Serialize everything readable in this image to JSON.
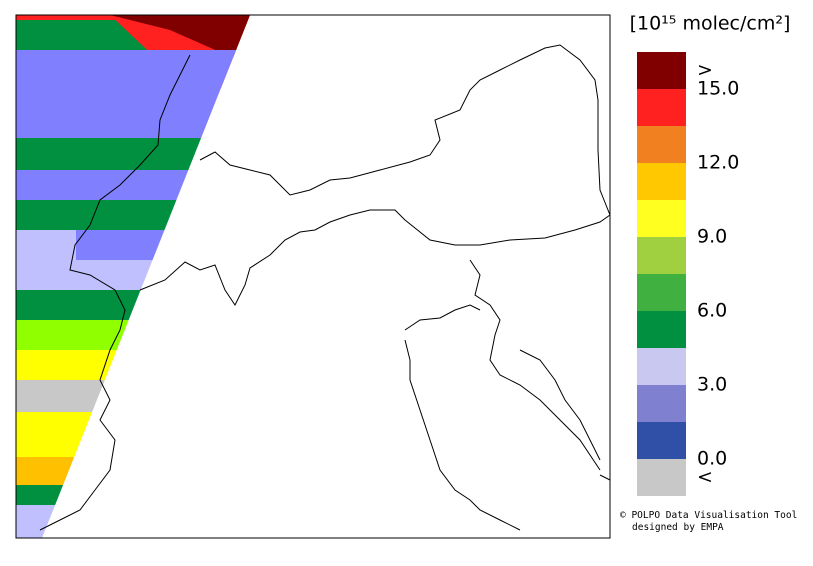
{
  "colorbar": {
    "title": "[10¹⁵ molec/cm²]",
    "colors": [
      "#800000",
      "#ff2020",
      "#f08020",
      "#ffc800",
      "#ffff20",
      "#a0d040",
      "#40b040",
      "#009040",
      "#c8c8f0",
      "#8080d0",
      "#3050a8",
      "#c8c8c8"
    ],
    "labels": [
      ">",
      "15.0",
      "12.0",
      "9.0",
      "6.0",
      "3.0",
      "0.0",
      "<"
    ]
  },
  "credits": [
    "© POLPO Data Visualisation Tool",
    "designed by EMPA"
  ]
}
